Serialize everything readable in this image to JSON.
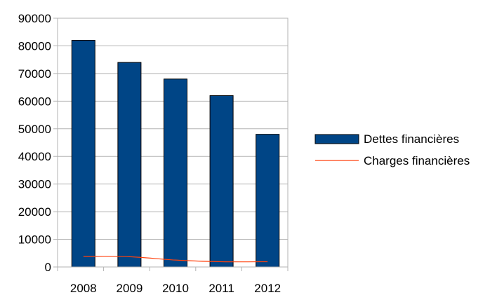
{
  "chart_data": {
    "type": "bar",
    "categories": [
      "2008",
      "2009",
      "2010",
      "2011",
      "2012"
    ],
    "series": [
      {
        "name": "Dettes financières",
        "kind": "bar",
        "color": "#004586",
        "values": [
          82000,
          74000,
          68000,
          62000,
          48000
        ]
      },
      {
        "name": "Charges financières",
        "kind": "line",
        "color": "#ff420e",
        "values": [
          3800,
          3700,
          2500,
          1900,
          1900
        ]
      }
    ],
    "title": "",
    "xlabel": "",
    "ylabel": "",
    "ylim": [
      0,
      90000
    ],
    "yticks": [
      "0",
      "10000",
      "20000",
      "30000",
      "40000",
      "50000",
      "60000",
      "70000",
      "80000",
      "90000"
    ],
    "grid": true,
    "legend": "right"
  }
}
